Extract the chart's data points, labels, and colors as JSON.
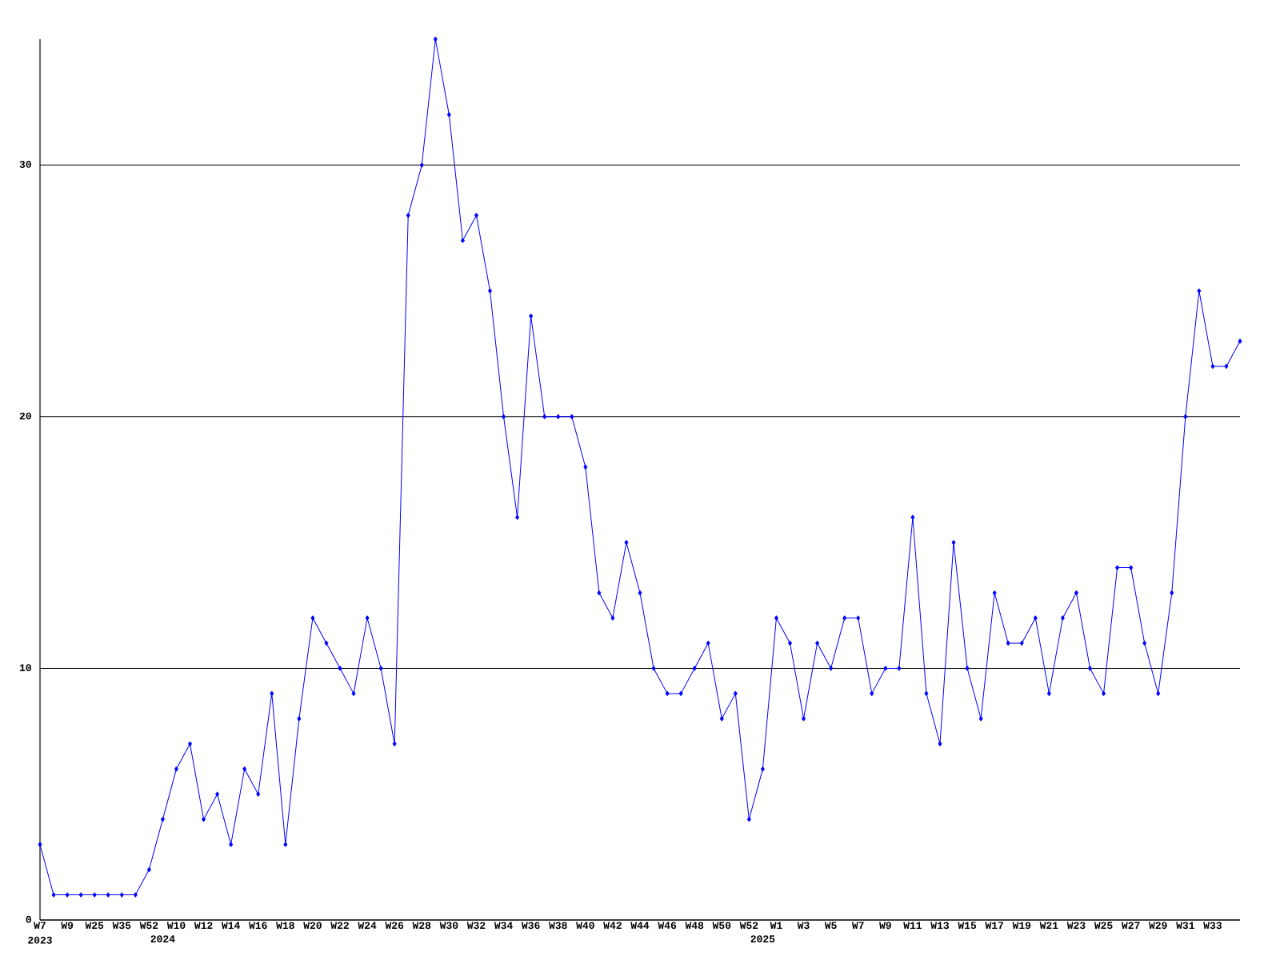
{
  "chart_data": {
    "type": "line",
    "annotations": [
      "2023"
    ],
    "categories": [
      "W7",
      null,
      "W9",
      null,
      "W25",
      null,
      "W35",
      null,
      "W52",
      "2024",
      "W10",
      null,
      "W12",
      null,
      "W14",
      null,
      "W16",
      null,
      "W18",
      null,
      "W20",
      null,
      "W22",
      null,
      "W24",
      null,
      "W26",
      null,
      "W28",
      null,
      "W30",
      null,
      "W32",
      null,
      "W34",
      null,
      "W36",
      null,
      "W38",
      null,
      "W40",
      null,
      "W42",
      null,
      "W44",
      null,
      "W46",
      null,
      "W48",
      null,
      "W50",
      null,
      "W52",
      "2025",
      "W1",
      null,
      "W3",
      null,
      "W5",
      null,
      "W7",
      null,
      "W9",
      null,
      "W11",
      null,
      "W13",
      null,
      "W15",
      null,
      "W17",
      null,
      "W19",
      null,
      "W21",
      null,
      "W23",
      null,
      "W25",
      null,
      "W27",
      null,
      "W29",
      null,
      "W31",
      null,
      "W33",
      null,
      null
    ],
    "series": [
      {
        "color": "#0000ff",
        "values": [
          3,
          1,
          1,
          1,
          1,
          1,
          1,
          1,
          2,
          4,
          6,
          7,
          4,
          5,
          3,
          6,
          5,
          9,
          3,
          8,
          12,
          11,
          10,
          9,
          12,
          10,
          7,
          28,
          30,
          35,
          32,
          27,
          28,
          25,
          20,
          16,
          24,
          20,
          20,
          20,
          18,
          13,
          12,
          15,
          13,
          10,
          9,
          9,
          10,
          11,
          8,
          9,
          4,
          6,
          12,
          11,
          8,
          11,
          10,
          12,
          12,
          9,
          10,
          10,
          16,
          9,
          7,
          15,
          10,
          8,
          13,
          11,
          11,
          12,
          9,
          12,
          13,
          10,
          9,
          14,
          14,
          11,
          9,
          13,
          20,
          25,
          22,
          22,
          23
        ]
      }
    ],
    "ylim": [
      0,
      35
    ],
    "yticks": [
      0,
      10,
      20,
      30
    ],
    "grid": "y",
    "marker": "diamond",
    "line_style": "solid"
  }
}
